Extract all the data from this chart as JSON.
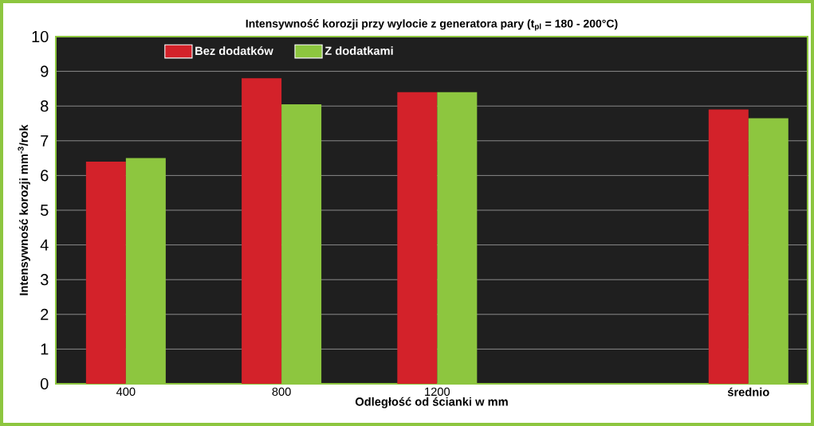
{
  "chart_data": {
    "type": "bar",
    "title": "Intensywność korozji przy wylocie z generatora pary (t$_{pl}$ = 180 - 200°C)",
    "xlabel": "Odległość od ścianki w mm",
    "ylabel": "Intensywność korozji mm$^{-3}$/rok",
    "categories": [
      "400",
      "800",
      "1200",
      null,
      "średnio"
    ],
    "series": [
      {
        "name": "Bez dodatków",
        "color": "#d3222a",
        "values": [
          6.4,
          8.8,
          8.4,
          null,
          7.9
        ]
      },
      {
        "name": "Z dodatkami",
        "color": "#8dc63f",
        "values": [
          6.5,
          8.05,
          8.4,
          null,
          7.65
        ]
      }
    ],
    "ylim": [
      0,
      10
    ],
    "yticks": [
      0,
      1,
      2,
      3,
      4,
      5,
      6,
      7,
      8,
      9,
      10
    ],
    "grid": "y",
    "legend": "top left"
  }
}
